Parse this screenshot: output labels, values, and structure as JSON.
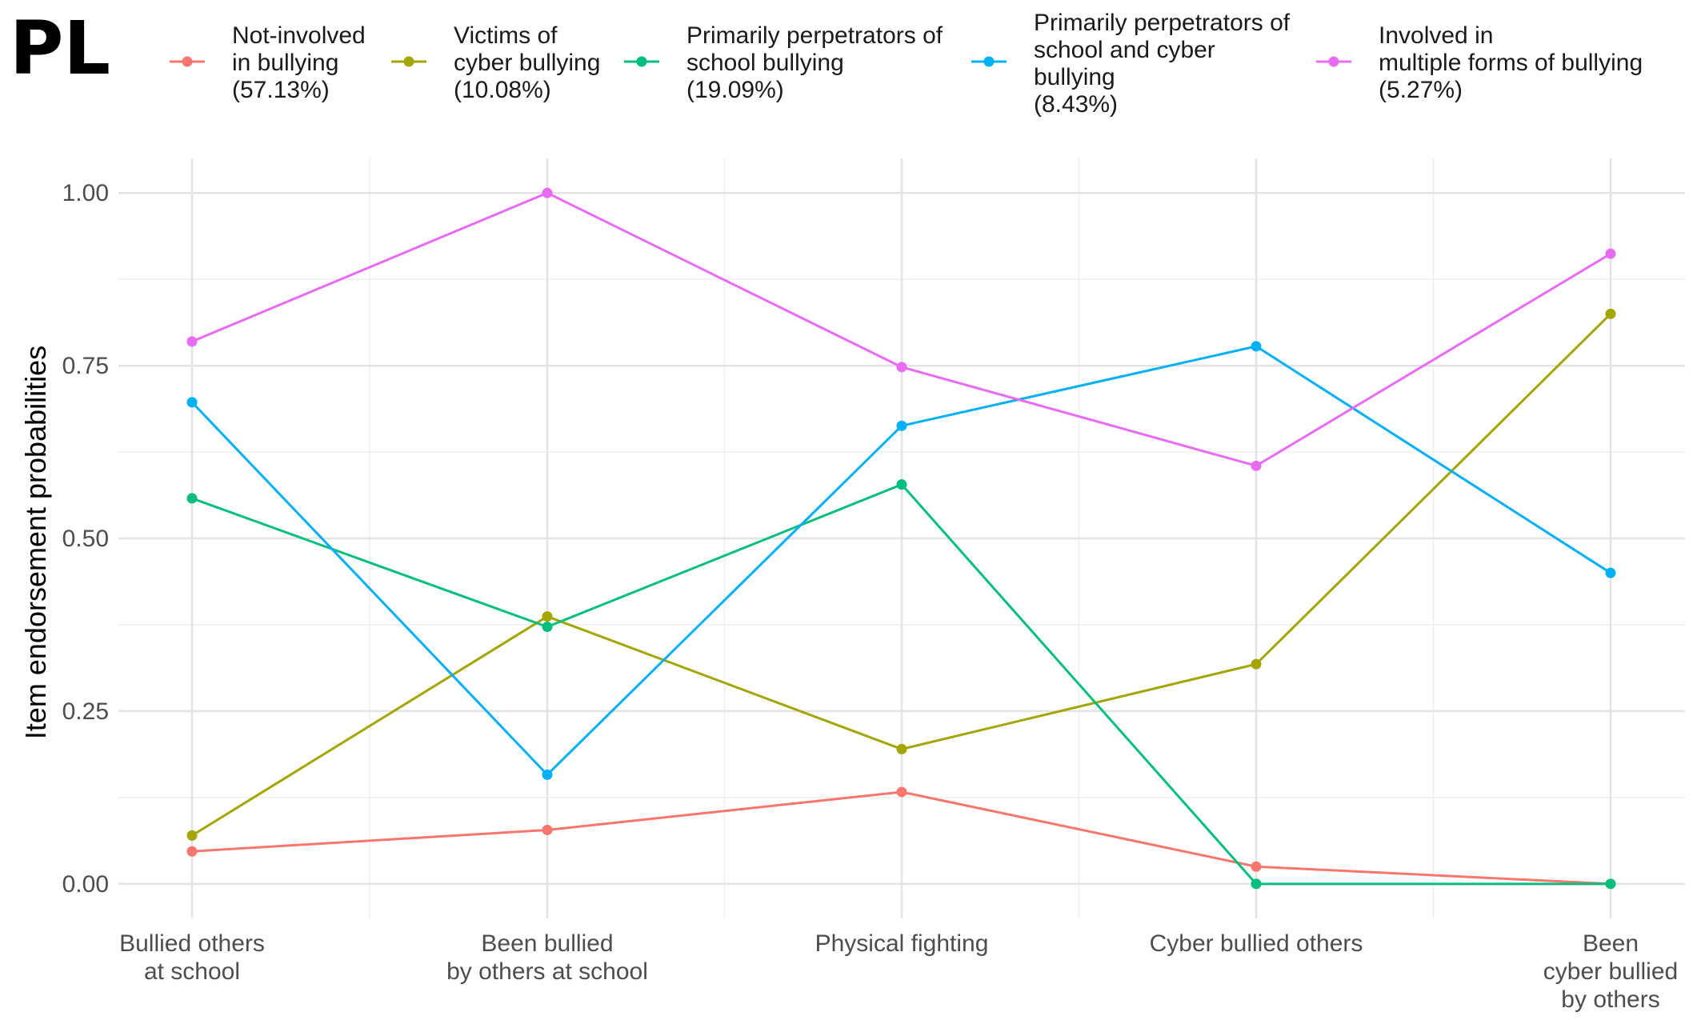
{
  "panel_label": "PL",
  "chart_data": {
    "type": "line",
    "title": "",
    "xlabel": "",
    "ylabel": "Item endorsement probabilities",
    "ylim": [
      -0.05,
      1.05
    ],
    "yticks": [
      0.0,
      0.25,
      0.5,
      0.75,
      1.0
    ],
    "ytick_labels": [
      "0.00",
      "0.25",
      "0.50",
      "0.75",
      "1.00"
    ],
    "grid": true,
    "legend_position": "top",
    "categories": [
      [
        "Bullied others",
        "at school"
      ],
      [
        "Been bullied",
        "by others at school"
      ],
      [
        "Physical fighting"
      ],
      [
        "Cyber bullied others"
      ],
      [
        "Been",
        "cyber bullied",
        "by others"
      ]
    ],
    "series": [
      {
        "name": "Not-involved in bullying (57.13%)",
        "legend_lines": [
          "Not-involved",
          "in bullying",
          "(57.13%)"
        ],
        "color": "#F8766D",
        "values": [
          0.047,
          0.078,
          0.133,
          0.025,
          0.0
        ]
      },
      {
        "name": "Victims of cyber bullying (10.08%)",
        "legend_lines": [
          "Victims of",
          "cyber bullying",
          "(10.08%)"
        ],
        "color": "#A3A500",
        "values": [
          0.07,
          0.387,
          0.195,
          0.318,
          0.825
        ]
      },
      {
        "name": "Primarily perpetrators of school bullying (19.09%)",
        "legend_lines": [
          "Primarily perpetrators of",
          "school bullying",
          "(19.09%)"
        ],
        "color": "#00BF7D",
        "values": [
          0.558,
          0.372,
          0.578,
          0.0,
          0.0
        ]
      },
      {
        "name": "Primarily perpetrators of school and cyber bullying (8.43%)",
        "legend_lines": [
          "Primarily perpetrators of",
          "school and cyber",
          "bullying",
          "(8.43%)"
        ],
        "color": "#00B0F6",
        "values": [
          0.697,
          0.158,
          0.663,
          0.778,
          0.45
        ]
      },
      {
        "name": "Involved in multiple forms of bullying (5.27%)",
        "legend_lines": [
          "Involved in",
          "multiple forms of bullying",
          "(5.27%)"
        ],
        "color": "#E76BF3",
        "values": [
          0.785,
          1.0,
          0.748,
          0.605,
          0.912
        ]
      }
    ]
  }
}
